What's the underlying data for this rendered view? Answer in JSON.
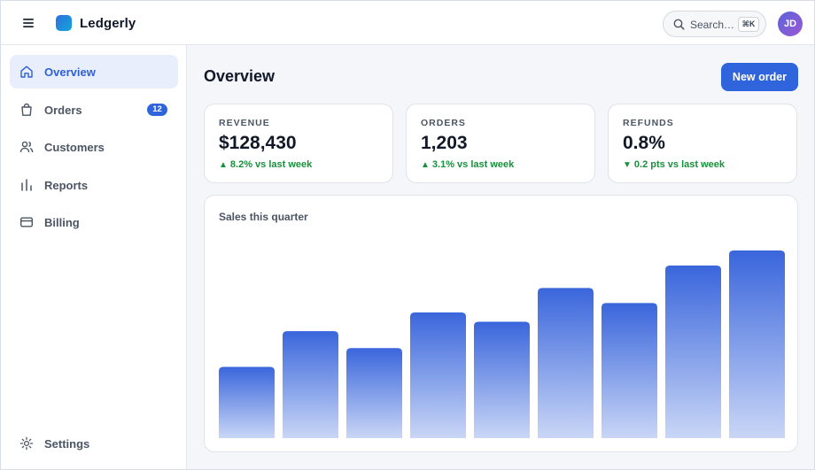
{
  "app": {
    "name": "Ledgerly"
  },
  "header": {
    "search_placeholder": "Search…",
    "search_shortcut": "⌘K",
    "avatar_initials": "JD",
    "avatar_color": "#6e5ad8"
  },
  "sidebar": {
    "items": [
      {
        "label": "Overview",
        "icon": "home-icon",
        "active": true
      },
      {
        "label": "Orders",
        "icon": "bag-icon",
        "badge": "12"
      },
      {
        "label": "Customers",
        "icon": "users-icon"
      },
      {
        "label": "Reports",
        "icon": "bar-chart-icon"
      },
      {
        "label": "Billing",
        "icon": "card-icon"
      }
    ],
    "footer_item": {
      "label": "Settings",
      "icon": "gear-icon"
    }
  },
  "main": {
    "title": "Overview",
    "primary_action": "New order",
    "kpis": [
      {
        "label": "REVENUE",
        "value": "$128,430",
        "delta": "8.2% vs last week",
        "trend": "up",
        "trend_color": "#16903a"
      },
      {
        "label": "ORDERS",
        "value": "1,203",
        "delta": "3.1% vs last week",
        "trend": "up",
        "trend_color": "#16903a"
      },
      {
        "label": "REFUNDS",
        "value": "0.8%",
        "delta": "0.2 pts vs last week",
        "trend": "down",
        "trend_color": "#16903a"
      }
    ],
    "chart_title": "Sales this quarter"
  },
  "chart_data": {
    "type": "bar",
    "title": "Sales this quarter",
    "values": [
      38,
      57,
      48,
      67,
      62,
      80,
      72,
      92,
      100
    ],
    "ylim": [
      0,
      100
    ],
    "grid": false,
    "legend": "none",
    "bar_color_top": "#3a66dc",
    "bar_color_bottom": "#c9d6f6"
  },
  "colors": {
    "accent": "#2f64dc",
    "active_nav_bg": "#e8eefb",
    "positive": "#16903a"
  }
}
